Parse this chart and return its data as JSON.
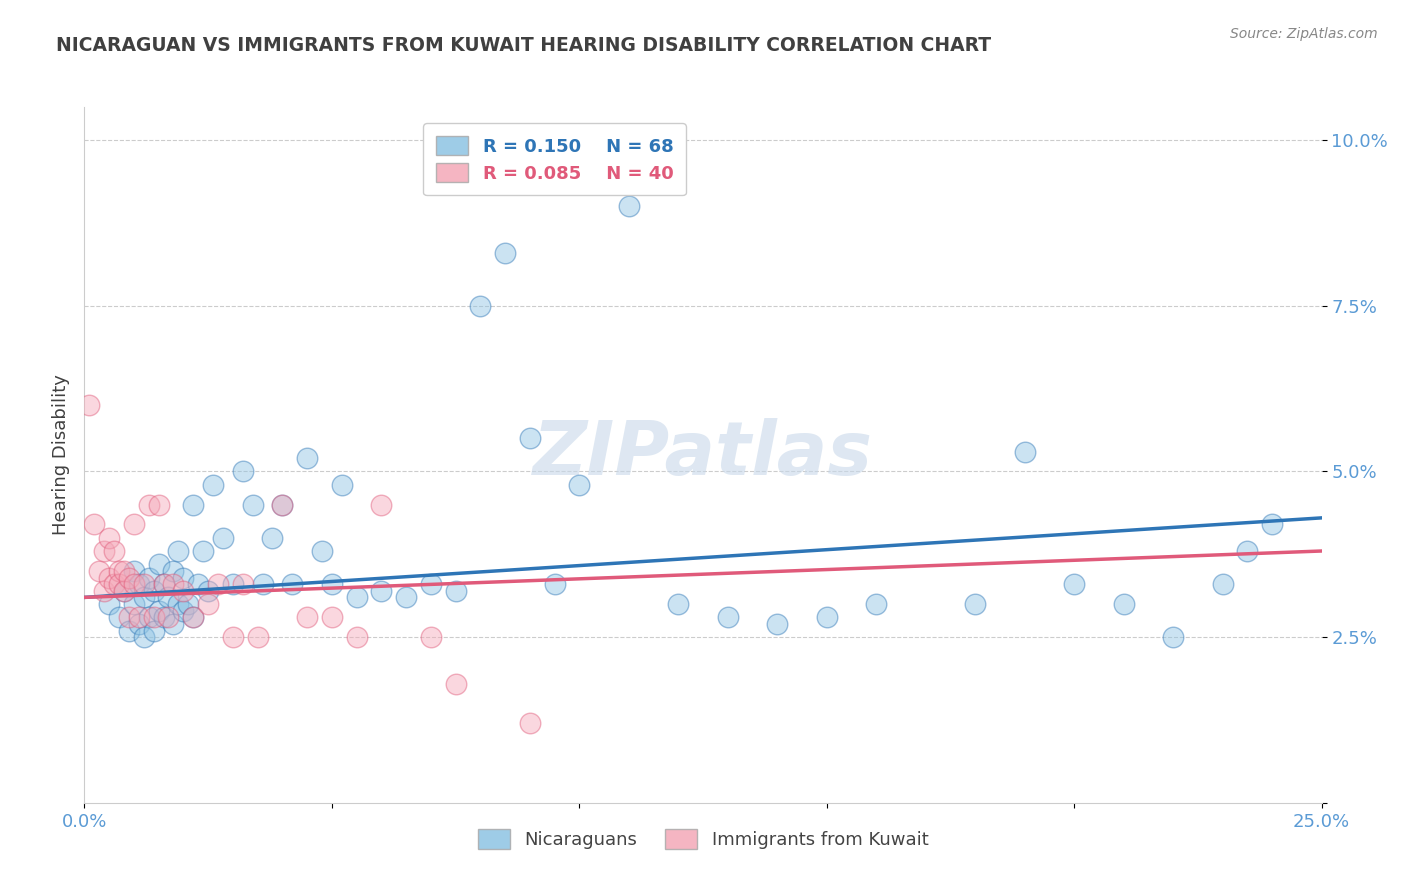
{
  "title": "NICARAGUAN VS IMMIGRANTS FROM KUWAIT HEARING DISABILITY CORRELATION CHART",
  "source": "Source: ZipAtlas.com",
  "ylabel": "Hearing Disability",
  "xlim": [
    0.0,
    0.25
  ],
  "ylim": [
    0.0,
    0.105
  ],
  "xticks": [
    0.0,
    0.05,
    0.1,
    0.15,
    0.2,
    0.25
  ],
  "xticklabels": [
    "0.0%",
    "",
    "",
    "",
    "",
    "25.0%"
  ],
  "yticks": [
    0.0,
    0.025,
    0.05,
    0.075,
    0.1
  ],
  "yticklabels": [
    "",
    "2.5%",
    "5.0%",
    "7.5%",
    "10.0%"
  ],
  "blue_color": "#8dc3e3",
  "pink_color": "#f4a8b8",
  "blue_line_color": "#2e75b6",
  "pink_line_color": "#e05a7a",
  "legend_R1": "R = 0.150",
  "legend_N1": "N = 68",
  "legend_R2": "R = 0.085",
  "legend_N2": "N = 40",
  "watermark": "ZIPatlas",
  "blue_scatter_x": [
    0.005,
    0.007,
    0.008,
    0.009,
    0.01,
    0.01,
    0.011,
    0.011,
    0.012,
    0.012,
    0.013,
    0.013,
    0.014,
    0.014,
    0.015,
    0.015,
    0.016,
    0.016,
    0.017,
    0.018,
    0.018,
    0.019,
    0.019,
    0.02,
    0.02,
    0.021,
    0.022,
    0.022,
    0.023,
    0.024,
    0.025,
    0.026,
    0.028,
    0.03,
    0.032,
    0.034,
    0.036,
    0.038,
    0.04,
    0.042,
    0.045,
    0.048,
    0.05,
    0.052,
    0.055,
    0.06,
    0.065,
    0.07,
    0.075,
    0.08,
    0.085,
    0.09,
    0.095,
    0.1,
    0.11,
    0.12,
    0.13,
    0.14,
    0.15,
    0.16,
    0.18,
    0.19,
    0.2,
    0.21,
    0.22,
    0.23,
    0.235,
    0.24
  ],
  "blue_scatter_y": [
    0.03,
    0.028,
    0.032,
    0.026,
    0.03,
    0.035,
    0.027,
    0.033,
    0.025,
    0.031,
    0.028,
    0.034,
    0.026,
    0.032,
    0.029,
    0.036,
    0.028,
    0.033,
    0.031,
    0.027,
    0.035,
    0.03,
    0.038,
    0.029,
    0.034,
    0.03,
    0.028,
    0.045,
    0.033,
    0.038,
    0.032,
    0.048,
    0.04,
    0.033,
    0.05,
    0.045,
    0.033,
    0.04,
    0.045,
    0.033,
    0.052,
    0.038,
    0.033,
    0.048,
    0.031,
    0.032,
    0.031,
    0.033,
    0.032,
    0.075,
    0.083,
    0.055,
    0.033,
    0.048,
    0.09,
    0.03,
    0.028,
    0.027,
    0.028,
    0.03,
    0.03,
    0.053,
    0.033,
    0.03,
    0.025,
    0.033,
    0.038,
    0.042
  ],
  "pink_scatter_x": [
    0.001,
    0.002,
    0.003,
    0.004,
    0.004,
    0.005,
    0.005,
    0.006,
    0.006,
    0.007,
    0.007,
    0.008,
    0.008,
    0.009,
    0.009,
    0.01,
    0.01,
    0.011,
    0.012,
    0.013,
    0.014,
    0.015,
    0.016,
    0.017,
    0.018,
    0.02,
    0.022,
    0.025,
    0.027,
    0.03,
    0.032,
    0.035,
    0.04,
    0.045,
    0.05,
    0.055,
    0.06,
    0.07,
    0.075,
    0.09
  ],
  "pink_scatter_y": [
    0.06,
    0.042,
    0.035,
    0.032,
    0.038,
    0.034,
    0.04,
    0.033,
    0.038,
    0.035,
    0.033,
    0.032,
    0.035,
    0.034,
    0.028,
    0.033,
    0.042,
    0.028,
    0.033,
    0.045,
    0.028,
    0.045,
    0.033,
    0.028,
    0.033,
    0.032,
    0.028,
    0.03,
    0.033,
    0.025,
    0.033,
    0.025,
    0.045,
    0.028,
    0.028,
    0.025,
    0.045,
    0.025,
    0.018,
    0.012
  ],
  "grid_color": "#cccccc",
  "background_color": "#ffffff",
  "title_color": "#404040",
  "axis_label_color": "#5b9bd5"
}
